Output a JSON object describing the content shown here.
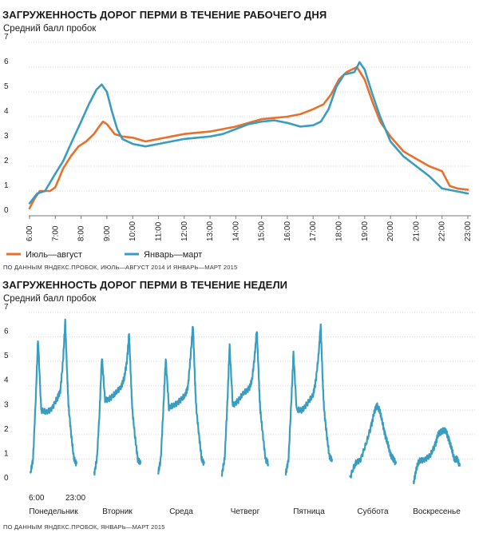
{
  "colors": {
    "summer": "#e8702a",
    "winter": "#3a9dbf",
    "grid": "#d6d6d6",
    "axis": "#777777"
  },
  "chart_data": [
    {
      "type": "line",
      "title": "ЗАГРУЖЕННОСТЬ ДОРОГ ПЕРМИ В ТЕЧЕНИЕ РАБОЧЕГО ДНЯ",
      "ylabel": "Средний балл пробок",
      "source": "ПО ДАННЫМ ЯНДЕКС.ПРОБОК, ИЮЛЬ—АВГУСТ 2014 И ЯНВАРЬ—МАРТ 2015",
      "ylim": [
        0,
        7
      ],
      "xlim": [
        6,
        23
      ],
      "yticks": [
        "0",
        "1",
        "2",
        "3",
        "4",
        "5",
        "6",
        "7"
      ],
      "xtick_labels": [
        "6:00",
        "7:00",
        "8:00",
        "9:00",
        "10:00",
        "11:00",
        "12:00",
        "13:00",
        "14:00",
        "15:00",
        "16:00",
        "17:00",
        "18:00",
        "19:00",
        "20:00",
        "21:00",
        "22:00",
        "23:00"
      ],
      "grid": "horizontal",
      "legend_position": "bottom-left",
      "series": [
        {
          "name": "Июль—август",
          "color": "#e8702a",
          "x": [
            6,
            6.2,
            6.4,
            6.8,
            7.0,
            7.3,
            7.6,
            7.9,
            8.2,
            8.5,
            8.7,
            8.85,
            9.0,
            9.3,
            9.6,
            10.0,
            10.5,
            11.0,
            11.5,
            12.0,
            12.5,
            13.0,
            13.5,
            14.0,
            14.5,
            15.0,
            15.5,
            16.0,
            16.5,
            17.0,
            17.4,
            17.7,
            18.0,
            18.3,
            18.5,
            18.7,
            19.0,
            19.3,
            19.6,
            20.0,
            20.5,
            21.0,
            21.5,
            22.0,
            22.3,
            22.6,
            23.0
          ],
          "y": [
            0.3,
            0.7,
            1.0,
            1.0,
            1.15,
            1.9,
            2.4,
            2.8,
            3.0,
            3.3,
            3.6,
            3.8,
            3.7,
            3.3,
            3.2,
            3.15,
            3.0,
            3.1,
            3.2,
            3.3,
            3.35,
            3.4,
            3.5,
            3.6,
            3.75,
            3.9,
            3.95,
            4.0,
            4.1,
            4.3,
            4.5,
            4.9,
            5.5,
            5.8,
            5.9,
            6.0,
            5.5,
            4.6,
            3.8,
            3.2,
            2.6,
            2.3,
            2.0,
            1.8,
            1.2,
            1.1,
            1.05
          ]
        },
        {
          "name": "Январь—март",
          "color": "#3a9dbf",
          "x": [
            6,
            6.3,
            6.6,
            7.0,
            7.3,
            7.6,
            8.0,
            8.3,
            8.6,
            8.8,
            9.0,
            9.2,
            9.4,
            9.6,
            10.0,
            10.5,
            11.0,
            11.5,
            12.0,
            12.5,
            13.0,
            13.5,
            14.0,
            14.5,
            15.0,
            15.5,
            16.0,
            16.5,
            17.0,
            17.3,
            17.6,
            17.9,
            18.2,
            18.4,
            18.6,
            18.8,
            19.0,
            19.3,
            19.6,
            20.0,
            20.5,
            21.0,
            21.5,
            22.0,
            22.5,
            23.0
          ],
          "y": [
            0.5,
            0.9,
            1.0,
            1.7,
            2.2,
            2.9,
            3.8,
            4.5,
            5.1,
            5.3,
            5.0,
            4.2,
            3.5,
            3.1,
            2.9,
            2.8,
            2.9,
            3.0,
            3.1,
            3.15,
            3.2,
            3.3,
            3.5,
            3.7,
            3.8,
            3.85,
            3.75,
            3.6,
            3.65,
            3.8,
            4.3,
            5.2,
            5.7,
            5.75,
            5.8,
            6.2,
            5.9,
            4.9,
            4.0,
            3.0,
            2.4,
            2.0,
            1.6,
            1.1,
            1.0,
            0.9
          ]
        }
      ]
    },
    {
      "type": "line",
      "title": "ЗАГРУЖЕННОСТЬ ДОРОГ ПЕРМИ В ТЕЧЕНИЕ НЕДЕЛИ",
      "ylabel": "Средний балл пробок",
      "source": "ПО ДАННЫМ ЯНДЕКС.ПРОБОК, ЯНВАРЬ—МАРТ 2015",
      "ylim": [
        0,
        7
      ],
      "yticks": [
        "0",
        "1",
        "2",
        "3",
        "4",
        "5",
        "6",
        "7"
      ],
      "hour_labels": [
        "6:00",
        "23:00"
      ],
      "days": [
        "Понедельник",
        "Вторник",
        "Среда",
        "Четверг",
        "Пятница",
        "Суббота",
        "Воскресенье"
      ],
      "grid": "horizontal",
      "series": [
        {
          "name": "",
          "color": "#3a9dbf",
          "day_profiles": [
            {
              "x": [
                6,
                7,
                8,
                8.8,
                10,
                12,
                14,
                16,
                17,
                18,
                18.8,
                19.5,
                20,
                21,
                22,
                23
              ],
              "y": [
                0.4,
                1.0,
                3.5,
                5.9,
                3.0,
                2.9,
                3.1,
                3.5,
                3.8,
                5.0,
                6.6,
                4.5,
                3.2,
                2.0,
                1.0,
                0.8
              ]
            },
            {
              "x": [
                6,
                7,
                8,
                8.8,
                10,
                12,
                14,
                16,
                17,
                18,
                18.8,
                19.5,
                20,
                21,
                22,
                23
              ],
              "y": [
                0.4,
                1.0,
                3.0,
                5.2,
                3.4,
                3.5,
                3.7,
                4.0,
                4.3,
                5.0,
                6.1,
                4.2,
                3.0,
                1.9,
                1.0,
                0.8
              ]
            },
            {
              "x": [
                6,
                7,
                8,
                8.8,
                10,
                12,
                14,
                16,
                17,
                18,
                18.8,
                19.5,
                20,
                21,
                22,
                23
              ],
              "y": [
                0.4,
                1.0,
                3.2,
                5.1,
                3.1,
                3.2,
                3.4,
                3.6,
                4.0,
                5.3,
                6.5,
                4.3,
                3.1,
                2.0,
                1.0,
                0.8
              ]
            },
            {
              "x": [
                6,
                7,
                8,
                8.8,
                10,
                12,
                14,
                16,
                17,
                18,
                18.8,
                19.5,
                20,
                21,
                22,
                23
              ],
              "y": [
                0.4,
                1.0,
                3.3,
                5.6,
                3.2,
                3.4,
                3.7,
                3.9,
                4.2,
                5.2,
                6.3,
                4.4,
                3.1,
                2.0,
                1.0,
                0.8
              ]
            },
            {
              "x": [
                6,
                7,
                8,
                8.8,
                10,
                12,
                14,
                16,
                17,
                18,
                18.8,
                19.5,
                20,
                21,
                22,
                23
              ],
              "y": [
                0.4,
                1.0,
                3.3,
                5.3,
                3.0,
                3.0,
                3.3,
                3.6,
                4.2,
                5.2,
                6.5,
                4.3,
                3.1,
                2.0,
                1.1,
                1.0
              ]
            },
            {
              "x": [
                6,
                8,
                10,
                12,
                14,
                15,
                16,
                17,
                18,
                19,
                20,
                21,
                22,
                23
              ],
              "y": [
                0.2,
                0.8,
                1.0,
                1.6,
                2.4,
                2.9,
                3.2,
                3.0,
                2.5,
                2.0,
                1.6,
                1.2,
                1.0,
                0.8
              ]
            },
            {
              "x": [
                6,
                7,
                8,
                10,
                12,
                14,
                15,
                16,
                17,
                18,
                19,
                20,
                21,
                22,
                23
              ],
              "y": [
                0.0,
                0.6,
                0.9,
                1.0,
                1.1,
                1.6,
                2.0,
                2.1,
                2.2,
                2.1,
                1.8,
                1.4,
                1.0,
                1.0,
                0.7
              ]
            }
          ]
        }
      ]
    }
  ]
}
